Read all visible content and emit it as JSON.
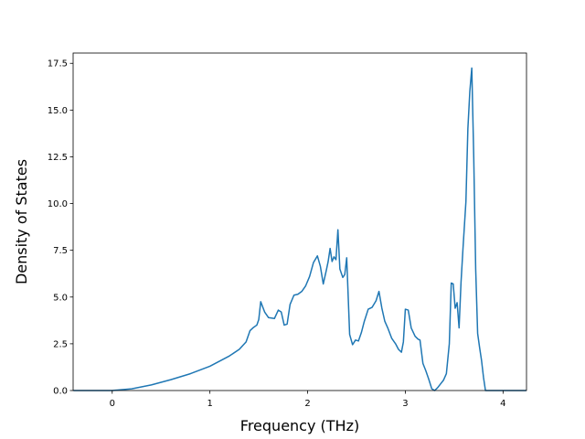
{
  "chart_data": {
    "type": "line",
    "xlabel": "Frequency (THz)",
    "ylabel": "Density of States",
    "xlim": [
      -0.4,
      4.24
    ],
    "ylim": [
      0,
      18.05
    ],
    "grid": false,
    "x_ticks": [
      0,
      1,
      2,
      3,
      4
    ],
    "x_tick_labels": [
      "0",
      "1",
      "2",
      "3",
      "4"
    ],
    "y_ticks": [
      0.0,
      2.5,
      5.0,
      7.5,
      10.0,
      12.5,
      15.0,
      17.5
    ],
    "y_tick_labels": [
      "0.0",
      "2.5",
      "5.0",
      "7.5",
      "10.0",
      "12.5",
      "15.0",
      "17.5"
    ],
    "series": [
      {
        "color": "#1f77b4",
        "x": [
          -0.39,
          0.0,
          0.2,
          0.4,
          0.6,
          0.8,
          1.0,
          1.2,
          1.3,
          1.37,
          1.41,
          1.44,
          1.48,
          1.5,
          1.52,
          1.56,
          1.6,
          1.66,
          1.7,
          1.73,
          1.76,
          1.79,
          1.82,
          1.86,
          1.9,
          1.94,
          1.98,
          2.02,
          2.06,
          2.1,
          2.13,
          2.16,
          2.19,
          2.21,
          2.23,
          2.25,
          2.27,
          2.29,
          2.31,
          2.33,
          2.36,
          2.38,
          2.4,
          2.43,
          2.46,
          2.49,
          2.52,
          2.55,
          2.58,
          2.62,
          2.66,
          2.7,
          2.73,
          2.76,
          2.79,
          2.82,
          2.86,
          2.9,
          2.93,
          2.96,
          2.98,
          3.0,
          3.03,
          3.06,
          3.1,
          3.13,
          3.15,
          3.18,
          3.21,
          3.24,
          3.27,
          3.3,
          3.33,
          3.36,
          3.39,
          3.42,
          3.45,
          3.47,
          3.49,
          3.51,
          3.53,
          3.55,
          3.57,
          3.59,
          3.62,
          3.64,
          3.66,
          3.68,
          3.7,
          3.72,
          3.74,
          3.76,
          3.78,
          3.8,
          3.82,
          3.85,
          4.0,
          4.23
        ],
        "y": [
          0.0,
          0.0,
          0.09,
          0.3,
          0.58,
          0.9,
          1.3,
          1.85,
          2.2,
          2.6,
          3.2,
          3.35,
          3.5,
          3.8,
          4.75,
          4.2,
          3.9,
          3.85,
          4.3,
          4.2,
          3.5,
          3.55,
          4.6,
          5.1,
          5.15,
          5.3,
          5.6,
          6.1,
          6.85,
          7.2,
          6.65,
          5.7,
          6.4,
          6.9,
          7.6,
          6.9,
          7.15,
          7.0,
          8.6,
          6.5,
          6.05,
          6.2,
          7.1,
          3.0,
          2.45,
          2.7,
          2.65,
          3.1,
          3.7,
          4.35,
          4.45,
          4.8,
          5.3,
          4.4,
          3.7,
          3.35,
          2.8,
          2.5,
          2.2,
          2.05,
          2.6,
          4.35,
          4.3,
          3.35,
          2.9,
          2.75,
          2.7,
          1.45,
          1.05,
          0.6,
          0.1,
          0.0,
          0.15,
          0.35,
          0.55,
          0.9,
          2.5,
          5.75,
          5.7,
          4.4,
          4.7,
          3.35,
          5.8,
          7.6,
          10.1,
          14.0,
          16.0,
          17.25,
          12.5,
          6.5,
          3.05,
          2.3,
          1.6,
          0.7,
          0.0,
          0.0,
          0.0,
          0.0
        ]
      }
    ]
  }
}
